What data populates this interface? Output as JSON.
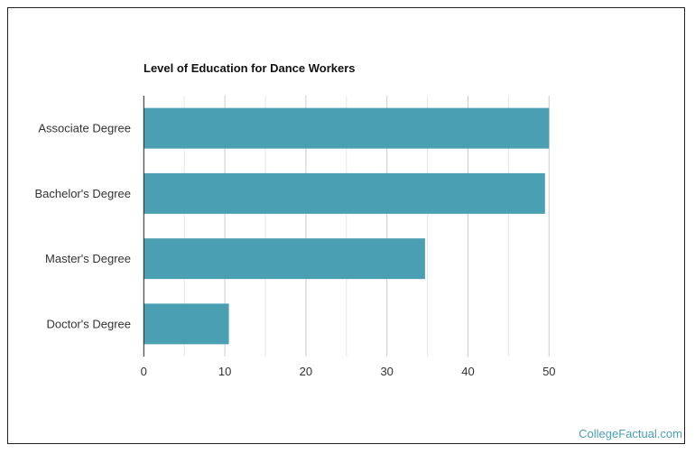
{
  "chart_data": {
    "type": "bar",
    "orientation": "horizontal",
    "title": "Level of Education for Dance Workers",
    "categories": [
      "Associate Degree",
      "Bachelor's Degree",
      "Master's Degree",
      "Doctor's Degree"
    ],
    "values": [
      50,
      49.5,
      34.7,
      10.5
    ],
    "xlim": [
      0,
      50
    ],
    "xticks": [
      0,
      10,
      20,
      30,
      40,
      50
    ],
    "minor_grid_step": 5,
    "grid": true,
    "bar_color": "#4a9fb3",
    "xlabel": "",
    "ylabel": ""
  },
  "footer": {
    "brand": "CollegeFactual.com"
  }
}
